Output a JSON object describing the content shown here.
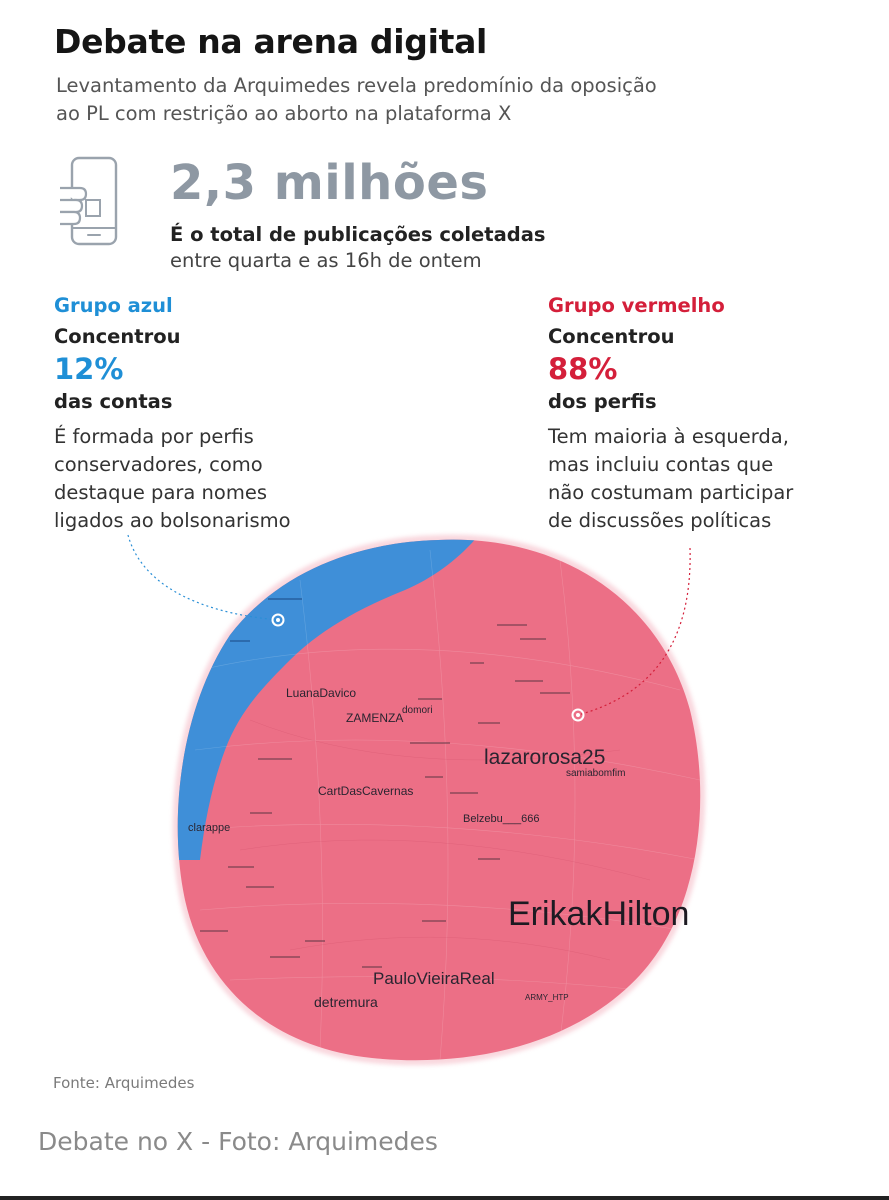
{
  "header": {
    "title": "Debate na arena digital",
    "subtitle_lines": [
      "Levantamento da Arquimedes revela predomínio da oposição",
      "ao PL com restrição ao aborto na plataforma X"
    ]
  },
  "stat": {
    "icon": "smartphone-hand-icon",
    "value": "2,3 milhões",
    "desc_bold": "É o total de publicações coletadas",
    "desc": "entre quarta e as 16h de ontem"
  },
  "groups": {
    "blue": {
      "name": "Grupo azul",
      "label": "Concentrou",
      "percent": "12%",
      "share": 0.12,
      "unit": "das contas",
      "description_lines": [
        "É formada por perfis",
        "conservadores, como",
        "destaque para nomes",
        "ligados ao bolsonarismo"
      ],
      "color": "#1f8fd6"
    },
    "red": {
      "name": "Grupo vermelho",
      "label": "Concentrou",
      "percent": "88%",
      "share": 0.88,
      "unit": "dos perfis",
      "description_lines": [
        "Tem maioria à esquerda,",
        "mas incluiu contas que",
        "não costumam participar",
        "de discussões políticas"
      ],
      "color": "#d41f3a"
    }
  },
  "network": {
    "blue_color": "#3f8fd8",
    "red_color": "#ec6f86",
    "labels": [
      "LuanaDavico",
      "ZAMENZA",
      "domori",
      "lazarorosa25",
      "samiabomfim",
      "CartDasCavernas",
      "clarappe",
      "Belzebu___666",
      "ErikakHilton",
      "PauloVieiraReal",
      "detremura",
      "ARMY_HTP"
    ]
  },
  "footer": {
    "source": "Fonte: Arquimedes",
    "caption": "Debate no X - Foto: Arquimedes"
  }
}
